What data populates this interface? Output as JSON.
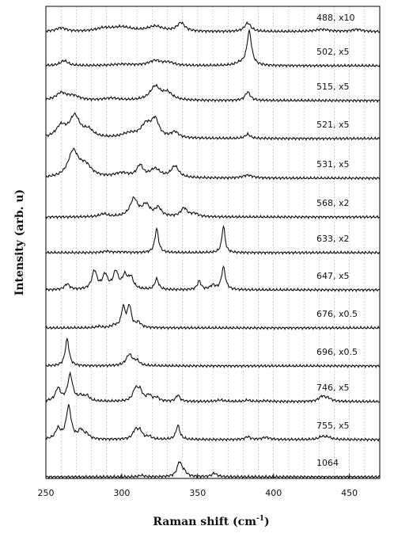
{
  "chart_data": {
    "type": "line",
    "xlabel": "Raman shift (cm",
    "xlabel_superscript": "-1",
    "xlabel_suffix": ")",
    "ylabel": "Intensity (arb. u)",
    "xlim": [
      250,
      470
    ],
    "x_ticks": [
      250,
      300,
      350,
      400,
      450
    ],
    "grid": "vertical dashed every 10 cm-1",
    "series": [
      {
        "name": "488, x10",
        "peaks": [
          [
            260,
            0.25,
            4
          ],
          [
            288,
            0.2,
            6
          ],
          [
            300,
            0.3,
            8
          ],
          [
            322,
            0.35,
            6
          ],
          [
            339,
            0.6,
            3
          ],
          [
            383,
            0.6,
            2.5
          ],
          [
            432,
            0.15,
            6
          ],
          [
            455,
            0.15,
            4
          ]
        ]
      },
      {
        "name": "502, x5",
        "peaks": [
          [
            262,
            0.35,
            3
          ],
          [
            300,
            0.1,
            8
          ],
          [
            322,
            0.35,
            5
          ],
          [
            331,
            0.2,
            4
          ],
          [
            378,
            0.15,
            4
          ],
          [
            384,
            2.4,
            1.8
          ]
        ]
      },
      {
        "name": "515, x5",
        "peaks": [
          [
            260,
            0.5,
            4
          ],
          [
            268,
            0.3,
            5
          ],
          [
            293,
            0.15,
            6
          ],
          [
            322,
            0.95,
            4
          ],
          [
            330,
            0.5,
            4
          ],
          [
            383,
            0.6,
            2
          ]
        ]
      },
      {
        "name": "521, x5",
        "peaks": [
          [
            260,
            0.8,
            4
          ],
          [
            269,
            1.5,
            4
          ],
          [
            278,
            0.5,
            4
          ],
          [
            305,
            0.3,
            6
          ],
          [
            316,
            0.9,
            4
          ],
          [
            322,
            1.2,
            3
          ],
          [
            335,
            0.4,
            3
          ],
          [
            383,
            0.3,
            2
          ]
        ]
      },
      {
        "name": "531, x5",
        "peaks": [
          [
            268,
            1.8,
            4
          ],
          [
            276,
            0.8,
            5
          ],
          [
            300,
            0.3,
            6
          ],
          [
            312,
            0.8,
            2.5
          ],
          [
            322,
            0.6,
            4
          ],
          [
            335,
            0.8,
            3
          ],
          [
            383,
            0.2,
            4
          ]
        ]
      },
      {
        "name": "568, x2",
        "peaks": [
          [
            288,
            0.2,
            3
          ],
          [
            308,
            1.25,
            3
          ],
          [
            316,
            0.8,
            3
          ],
          [
            324,
            0.6,
            2.5
          ],
          [
            341,
            0.6,
            2.5
          ],
          [
            348,
            0.2,
            3
          ]
        ]
      },
      {
        "name": "633, x2",
        "peaks": [
          [
            290,
            0.1,
            3
          ],
          [
            300,
            0.05,
            4
          ],
          [
            323,
            1.7,
            1.4
          ],
          [
            367,
            1.9,
            1.2
          ]
        ]
      },
      {
        "name": "647, x5",
        "peaks": [
          [
            264,
            0.4,
            2
          ],
          [
            282,
            1.3,
            2
          ],
          [
            289,
            1.0,
            2
          ],
          [
            296,
            1.2,
            2
          ],
          [
            302,
            0.9,
            2
          ],
          [
            306,
            0.8,
            2
          ],
          [
            323,
            0.75,
            1.5
          ],
          [
            351,
            0.6,
            1.5
          ],
          [
            360,
            0.3,
            2
          ],
          [
            367,
            1.6,
            1.5
          ]
        ]
      },
      {
        "name": "676, x0.5",
        "peaks": [
          [
            285,
            0.1,
            2
          ],
          [
            295,
            0.15,
            2
          ],
          [
            301,
            1.4,
            1.5
          ],
          [
            305,
            1.5,
            1.5
          ],
          [
            311,
            0.35,
            2
          ]
        ]
      },
      {
        "name": "696, x0.5",
        "peaks": [
          [
            264,
            1.9,
            1.5
          ],
          [
            305,
            0.8,
            2.5
          ],
          [
            310,
            0.3,
            2
          ]
        ]
      },
      {
        "name": "746, x5",
        "peaks": [
          [
            258,
            0.9,
            2
          ],
          [
            266,
            1.85,
            2
          ],
          [
            273,
            0.3,
            2
          ],
          [
            277,
            0.35,
            2
          ],
          [
            309,
            0.8,
            2
          ],
          [
            312,
            0.7,
            2
          ],
          [
            318,
            0.4,
            2
          ],
          [
            323,
            0.25,
            2
          ],
          [
            337,
            0.45,
            1.5
          ],
          [
            365,
            0.1,
            3
          ],
          [
            383,
            0.1,
            2
          ],
          [
            395,
            0.05,
            3
          ],
          [
            432,
            0.35,
            2.5
          ],
          [
            436,
            0.2,
            2.5
          ]
        ]
      },
      {
        "name": "755, x5",
        "peaks": [
          [
            258,
            0.7,
            2
          ],
          [
            265,
            2.3,
            2
          ],
          [
            273,
            0.6,
            2
          ],
          [
            277,
            0.3,
            2
          ],
          [
            309,
            0.6,
            2
          ],
          [
            312,
            0.55,
            2
          ],
          [
            318,
            0.2,
            2
          ],
          [
            337,
            1.0,
            1.5
          ],
          [
            383,
            0.2,
            2
          ],
          [
            395,
            0.15,
            3
          ],
          [
            432,
            0.2,
            2.5
          ],
          [
            436,
            0.15,
            2.5
          ]
        ]
      },
      {
        "name": "1064",
        "peaks": [
          [
            313,
            0.1,
            2
          ],
          [
            338,
            1.0,
            1.8
          ],
          [
            341,
            0.3,
            2
          ],
          [
            361,
            0.25,
            2
          ]
        ]
      }
    ]
  }
}
